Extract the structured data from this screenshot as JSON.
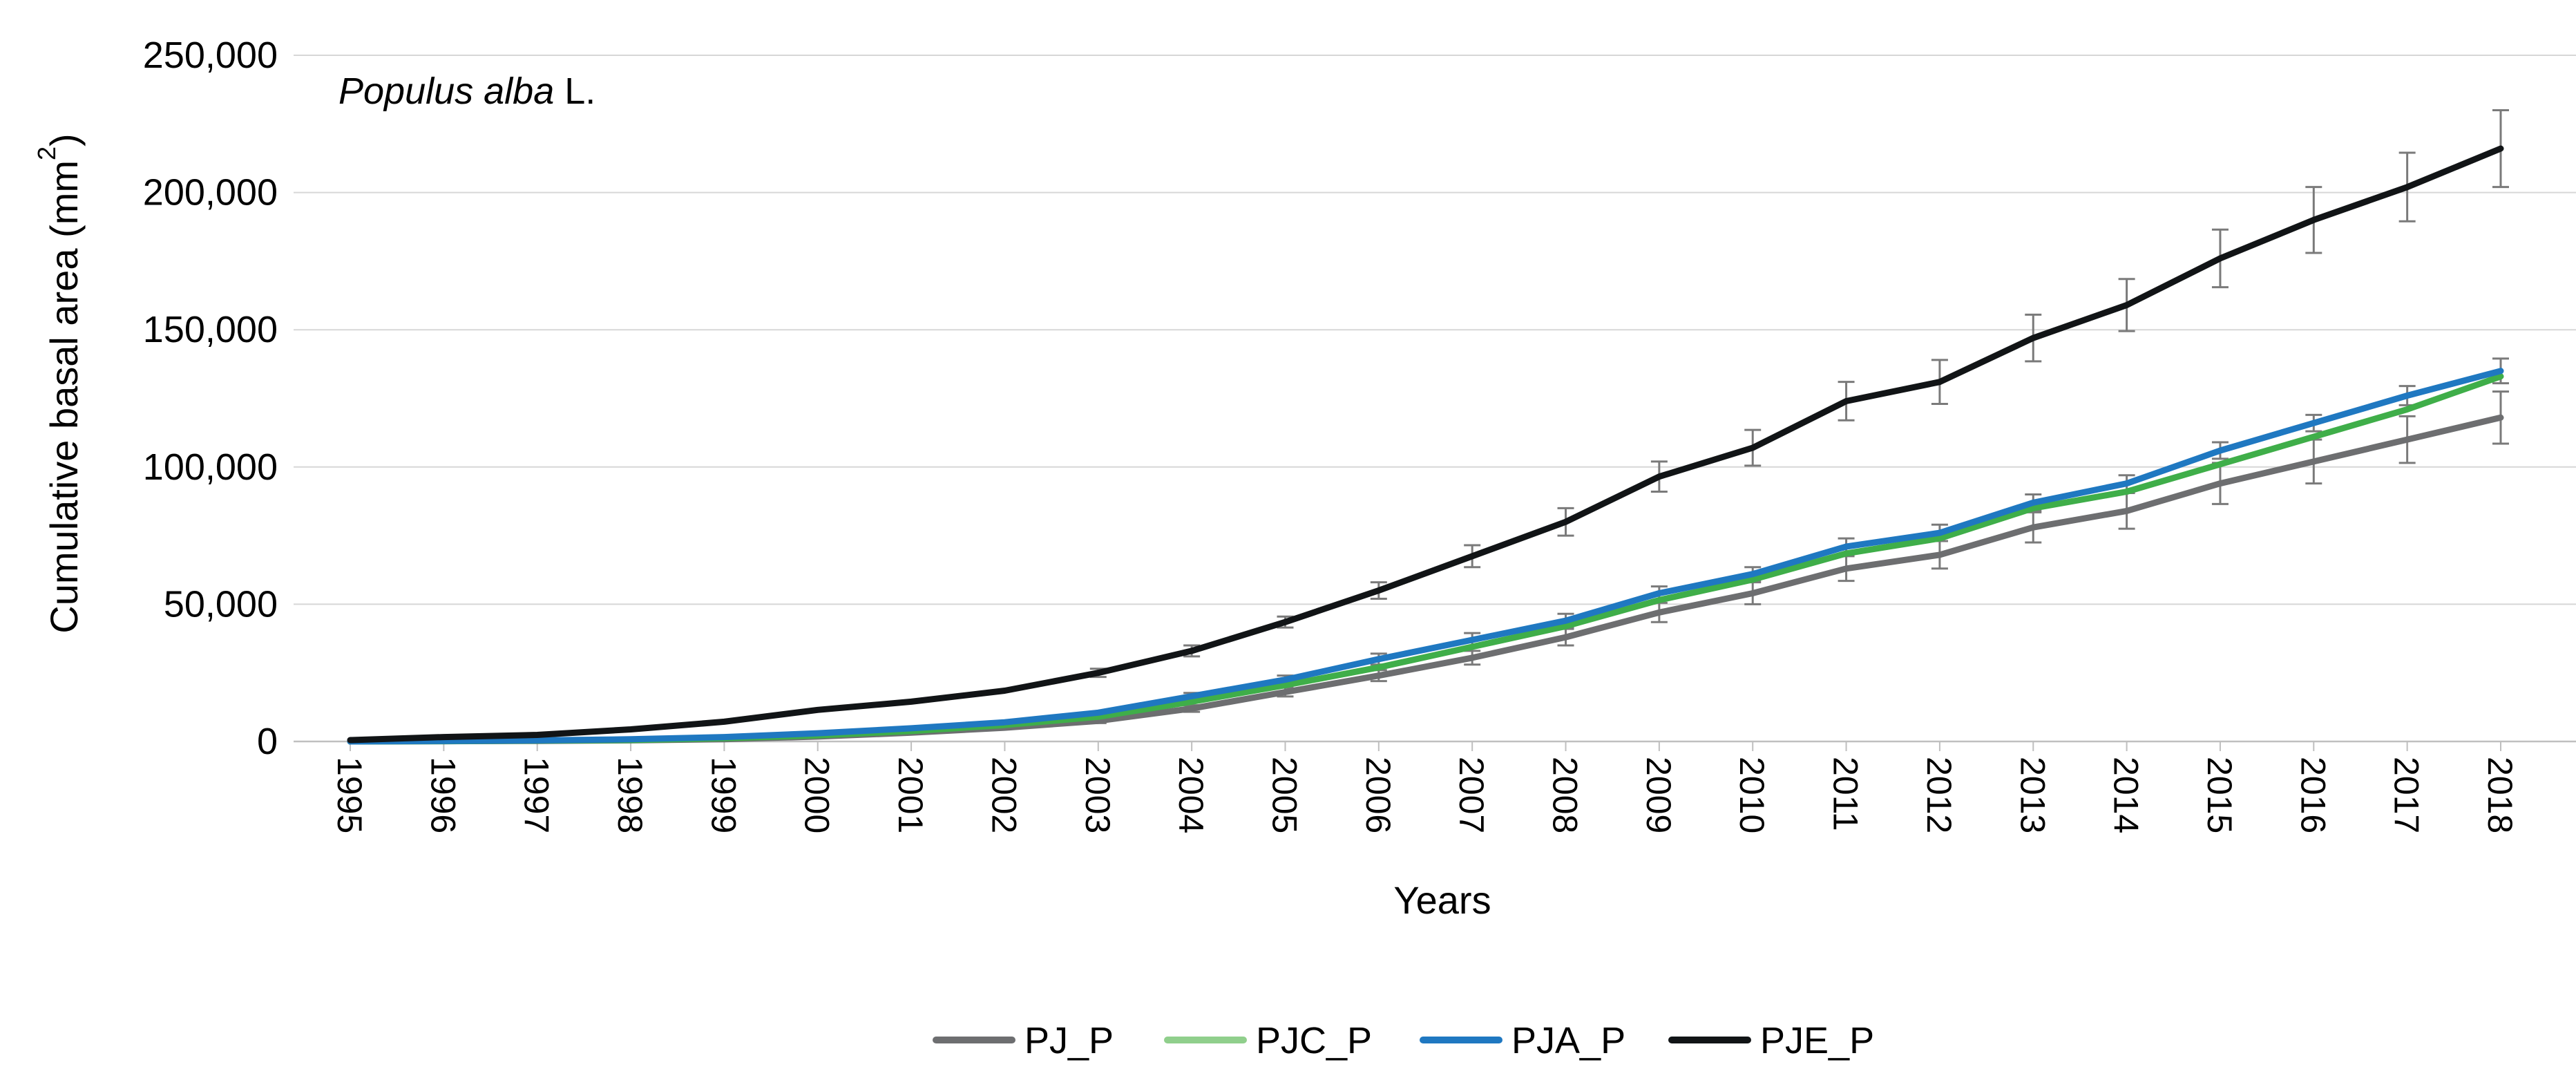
{
  "chart_data": {
    "type": "line",
    "title": "",
    "annotation": {
      "species": "Populus alba",
      "author": "L."
    },
    "xlabel": "Years",
    "ylabel": "Cumulative basal area (mm",
    "ylabel_sup": "2",
    "ylabel_close": ")",
    "ylim": [
      0,
      250000
    ],
    "yticks": [
      0,
      50000,
      100000,
      150000,
      200000,
      250000
    ],
    "ytick_labels": [
      "0",
      "50,000",
      "100,000",
      "150,000",
      "200,000",
      "250,000"
    ],
    "grid": "horizontal",
    "legend_position": "bottom",
    "categories": [
      "1995",
      "1996",
      "1997",
      "1998",
      "1999",
      "2000",
      "2001",
      "2002",
      "2003",
      "2004",
      "2005",
      "2006",
      "2007",
      "2008",
      "2009",
      "2010",
      "2011",
      "2012",
      "2013",
      "2014",
      "2015",
      "2016",
      "2017",
      "2018"
    ],
    "series": [
      {
        "name": "PJ_P",
        "color": "#6d6e70",
        "values": [
          0,
          100,
          200,
          400,
          800,
          1800,
          3200,
          5000,
          7500,
          12000,
          18000,
          24000,
          30500,
          38000,
          47000,
          54000,
          63000,
          68000,
          78000,
          84000,
          94000,
          102000,
          110000,
          118000
        ],
        "errors": [
          0,
          0,
          0,
          0,
          0,
          0,
          0,
          0,
          800,
          1200,
          1600,
          2000,
          2500,
          3000,
          3500,
          4000,
          4500,
          5000,
          5500,
          6500,
          7500,
          8000,
          8500,
          9500
        ]
      },
      {
        "name": "PJC_P",
        "color": "#3fae49",
        "legend_color": "#90cf8c",
        "values": [
          0,
          100,
          300,
          500,
          1200,
          2200,
          3800,
          6000,
          9000,
          14500,
          20500,
          27000,
          34500,
          42000,
          51500,
          59000,
          68500,
          74000,
          85000,
          91000,
          101000,
          111000,
          121000,
          133000
        ],
        "errors": [
          0,
          0,
          0,
          0,
          0,
          0,
          0,
          0,
          0,
          0,
          0,
          0,
          0,
          0,
          0,
          0,
          0,
          0,
          0,
          0,
          0,
          0,
          0,
          0
        ]
      },
      {
        "name": "PJA_P",
        "color": "#1f78c1",
        "values": [
          0,
          200,
          400,
          800,
          1600,
          3000,
          4800,
          7000,
          10500,
          16500,
          22500,
          30000,
          37000,
          44000,
          54000,
          61000,
          71000,
          76000,
          87000,
          94000,
          106000,
          116000,
          126000,
          135000
        ],
        "errors": [
          0,
          0,
          0,
          0,
          0,
          0,
          0,
          0,
          0,
          1200,
          1500,
          2000,
          2500,
          2500,
          2500,
          2500,
          3000,
          3000,
          3000,
          3000,
          3000,
          3000,
          3500,
          4500
        ]
      },
      {
        "name": "PJE_P",
        "color": "#111416",
        "values": [
          500,
          1600,
          2400,
          4400,
          7200,
          11500,
          14500,
          18500,
          25000,
          33000,
          43500,
          55000,
          67500,
          80000,
          96500,
          107000,
          124000,
          131000,
          147000,
          159000,
          176000,
          190000,
          202000,
          216000
        ],
        "errors": [
          0,
          0,
          0,
          0,
          0,
          0,
          0,
          0,
          1500,
          2000,
          2000,
          3000,
          4000,
          5000,
          5500,
          6500,
          7000,
          8000,
          8500,
          9500,
          10500,
          12000,
          12500,
          14000
        ]
      }
    ]
  }
}
